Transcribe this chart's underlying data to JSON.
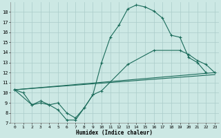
{
  "xlabel": "Humidex (Indice chaleur)",
  "bg_color": "#cce8e4",
  "grid_color": "#aaccca",
  "line_color": "#1a6b5a",
  "xlim": [
    -0.5,
    23.5
  ],
  "ylim": [
    7,
    19
  ],
  "xticks": [
    0,
    1,
    2,
    3,
    4,
    5,
    6,
    7,
    8,
    9,
    10,
    11,
    12,
    13,
    14,
    15,
    16,
    17,
    18,
    19,
    20,
    21,
    22,
    23
  ],
  "yticks": [
    7,
    8,
    9,
    10,
    11,
    12,
    13,
    14,
    15,
    16,
    17,
    18
  ],
  "line1_x": [
    0,
    1,
    2,
    3,
    4,
    5,
    6,
    7,
    8,
    9,
    10,
    11,
    12,
    13,
    14,
    15,
    16,
    17,
    18,
    19,
    20,
    21,
    22
  ],
  "line1_y": [
    10.3,
    10.0,
    8.8,
    9.0,
    8.8,
    8.3,
    7.3,
    7.3,
    8.5,
    9.8,
    13.0,
    15.5,
    16.7,
    18.3,
    18.7,
    18.5,
    18.1,
    17.4,
    15.7,
    15.5,
    13.5,
    13.0,
    12.0
  ],
  "line2_x": [
    0,
    2,
    3,
    4,
    5,
    6,
    7,
    8,
    9,
    10,
    13,
    16,
    19,
    20,
    21,
    22,
    23
  ],
  "line2_y": [
    10.3,
    8.8,
    9.2,
    8.8,
    9.0,
    8.0,
    7.5,
    8.5,
    9.8,
    10.2,
    12.8,
    14.2,
    14.2,
    13.8,
    13.2,
    12.8,
    12.0
  ],
  "line3_x": [
    0,
    23
  ],
  "line3_y": [
    10.3,
    12.0
  ],
  "line4_x": [
    0,
    23
  ],
  "line4_y": [
    10.3,
    11.8
  ]
}
